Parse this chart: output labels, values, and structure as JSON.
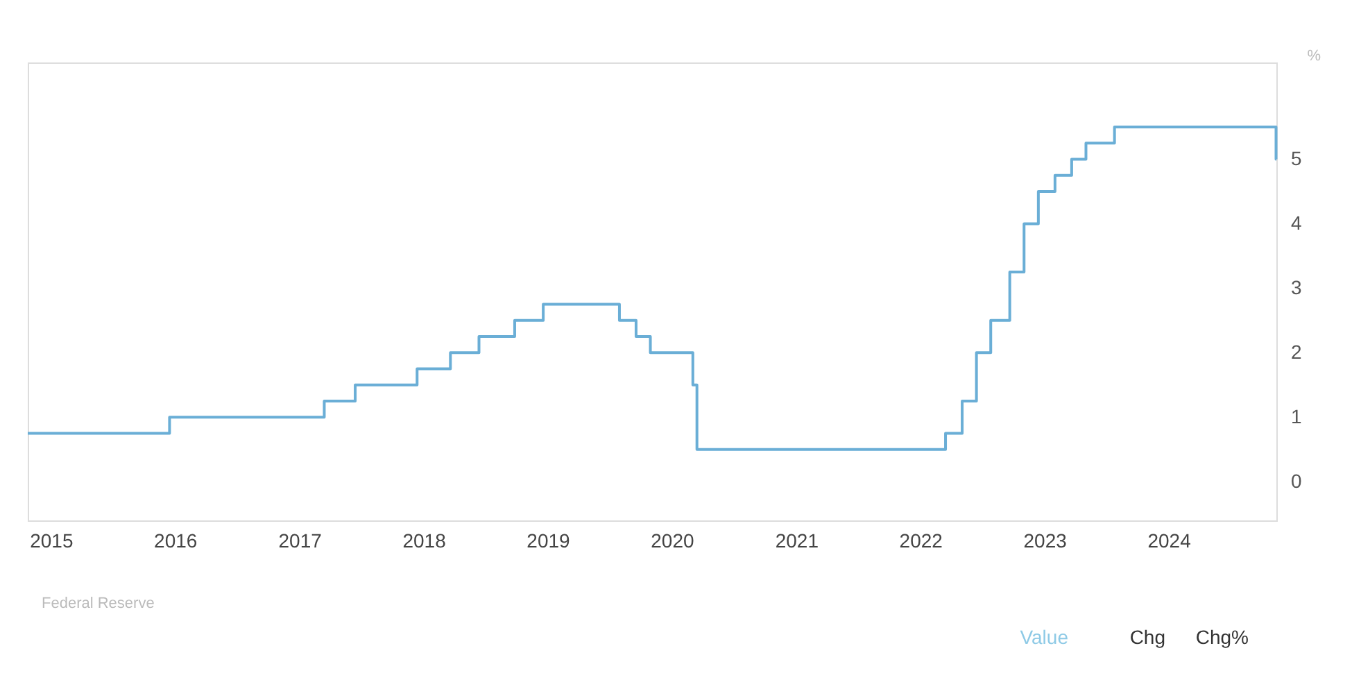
{
  "chart_data": {
    "type": "step",
    "ylabel": "%",
    "x": [
      "2014-10-25",
      "2015-12-16",
      "2016-12-14",
      "2017-03-15",
      "2017-06-14",
      "2017-12-13",
      "2018-03-21",
      "2018-06-13",
      "2018-09-26",
      "2018-12-19",
      "2019-07-31",
      "2019-09-18",
      "2019-10-30",
      "2020-03-03",
      "2020-03-15",
      "2022-03-16",
      "2022-05-04",
      "2022-06-15",
      "2022-07-27",
      "2022-09-21",
      "2022-11-02",
      "2022-12-14",
      "2023-02-01",
      "2023-03-22",
      "2023-05-03",
      "2023-07-26",
      "2024-11-12",
      "2024-11-13"
    ],
    "series": [
      {
        "color": "#6aaed6",
        "values": [
          0.75,
          1.0,
          1.0,
          1.25,
          1.5,
          1.75,
          2.0,
          2.25,
          2.5,
          2.75,
          2.5,
          2.25,
          2.0,
          1.5,
          0.5,
          0.75,
          1.25,
          2.0,
          2.5,
          3.25,
          4.0,
          4.5,
          4.75,
          5.0,
          5.25,
          5.5,
          5.0,
          5.0
        ]
      }
    ],
    "xlim": [
      "2014-10-25",
      "2024-11-13"
    ],
    "xticks": [
      {
        "value": "2015-01-01",
        "label": "2015"
      },
      {
        "value": "2016-01-01",
        "label": "2016"
      },
      {
        "value": "2017-01-01",
        "label": "2017"
      },
      {
        "value": "2018-01-01",
        "label": "2018"
      },
      {
        "value": "2019-01-01",
        "label": "2019"
      },
      {
        "value": "2020-01-01",
        "label": "2020"
      },
      {
        "value": "2021-01-01",
        "label": "2021"
      },
      {
        "value": "2022-01-01",
        "label": "2022"
      },
      {
        "value": "2023-01-01",
        "label": "2023"
      },
      {
        "value": "2024-01-01",
        "label": "2024"
      }
    ],
    "ylim": [
      -0.6,
      6.5
    ],
    "yticks": [
      0,
      1,
      2,
      3,
      4,
      5
    ],
    "grid": false,
    "annotations": [
      "Federal Reserve",
      "Value",
      "Chg",
      "Chg%"
    ]
  }
}
